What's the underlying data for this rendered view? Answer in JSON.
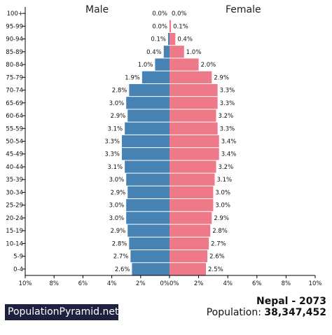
{
  "header": {
    "male_label": "Male",
    "female_label": "Female"
  },
  "footer": {
    "brand": "PopulationPyramid.net",
    "country_year": "Nepal - 2073",
    "population_label": "Population:",
    "population_value": "38,347,452"
  },
  "colors": {
    "male": "#4682b4",
    "female": "#ee7989",
    "axis": "#000000"
  },
  "chart_data": {
    "type": "bar",
    "orientation": "horizontal-pyramid",
    "categories": [
      "100+",
      "95-99",
      "90-94",
      "85-89",
      "80-84",
      "75-79",
      "70-74",
      "65-69",
      "60-64",
      "55-59",
      "50-54",
      "45-49",
      "40-44",
      "35-39",
      "30-34",
      "25-29",
      "20-24",
      "15-19",
      "10-14",
      "5-9",
      "0-4"
    ],
    "series": [
      {
        "name": "Male",
        "values": [
          0.0,
          0.0,
          0.1,
          0.4,
          1.0,
          1.9,
          2.8,
          3.0,
          2.9,
          3.1,
          3.3,
          3.3,
          3.1,
          3.0,
          2.9,
          3.0,
          3.0,
          2.9,
          2.8,
          2.7,
          2.6
        ],
        "labels": [
          "0.0%",
          "0.0%",
          "0.1%",
          "0.4%",
          "1.0%",
          "1.9%",
          "2.8%",
          "3.0%",
          "2.9%",
          "3.1%",
          "3.3%",
          "3.3%",
          "3.1%",
          "3.0%",
          "2.9%",
          "3.0%",
          "3.0%",
          "2.9%",
          "2.8%",
          "2.7%",
          "2.6%"
        ]
      },
      {
        "name": "Female",
        "values": [
          0.0,
          0.1,
          0.4,
          1.0,
          2.0,
          2.9,
          3.3,
          3.3,
          3.2,
          3.3,
          3.4,
          3.4,
          3.2,
          3.1,
          3.0,
          3.0,
          2.9,
          2.8,
          2.7,
          2.6,
          2.5
        ],
        "labels": [
          "0.0%",
          "0.1%",
          "0.4%",
          "1.0%",
          "2.0%",
          "2.9%",
          "3.3%",
          "3.3%",
          "3.2%",
          "3.3%",
          "3.4%",
          "3.4%",
          "3.2%",
          "3.1%",
          "3.0%",
          "3.0%",
          "2.9%",
          "2.8%",
          "2.7%",
          "2.6%",
          "2.5%"
        ]
      }
    ],
    "x_ticks_left": [
      "10%",
      "8%",
      "6%",
      "4%",
      "2%",
      "0%"
    ],
    "x_ticks_right": [
      "0%",
      "2%",
      "4%",
      "6%",
      "8%",
      "10%"
    ],
    "xlim": [
      0,
      10
    ],
    "grid": false
  }
}
